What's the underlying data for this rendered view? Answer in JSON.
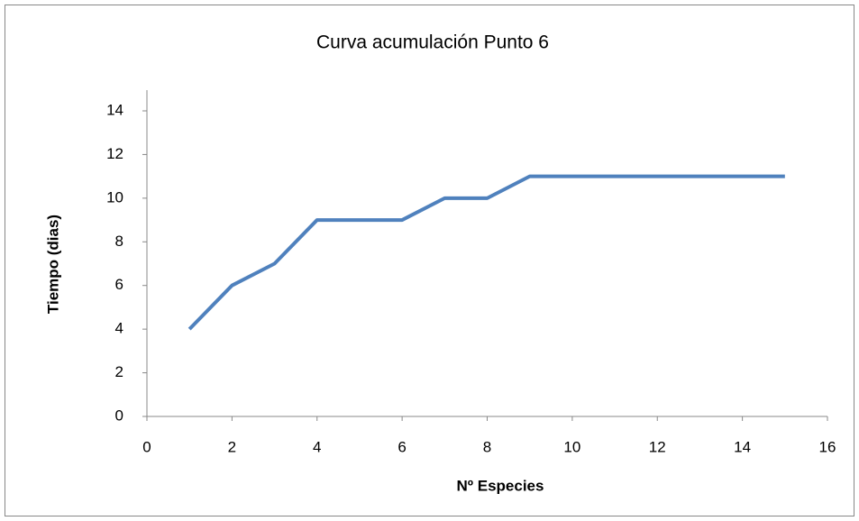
{
  "chart_data": {
    "type": "line",
    "title": "Curva acumulación Punto 6",
    "x_label": "Nº Especies",
    "y_label": "Tiempo (dias)",
    "x": [
      1,
      2,
      3,
      4,
      5,
      6,
      7,
      8,
      9,
      10,
      11,
      12,
      13,
      14,
      15
    ],
    "series": [
      {
        "name": "Tiempo (dias)",
        "color": "#4f81bd",
        "values": [
          4,
          6,
          7,
          9,
          9,
          9,
          10,
          10,
          11,
          11,
          11,
          11,
          11,
          11,
          11
        ]
      }
    ],
    "xlim": [
      0,
      16
    ],
    "xticks": [
      0,
      2,
      4,
      6,
      8,
      10,
      12,
      14,
      16
    ],
    "ylim": [
      0,
      14
    ],
    "yticks": [
      0,
      2,
      4,
      6,
      8,
      10,
      12,
      14
    ],
    "grid": false,
    "legend": false
  }
}
